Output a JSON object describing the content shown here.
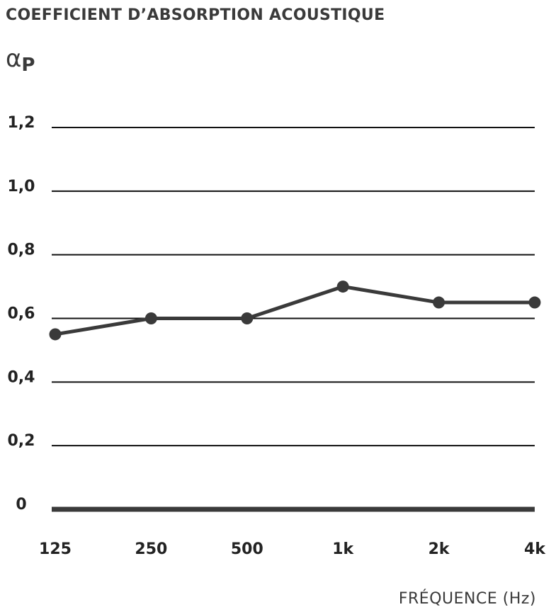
{
  "chart_data": {
    "type": "line",
    "title": "COEFFICIENT D’ABSORPTION ACOUSTIQUE",
    "y_label": "α",
    "y_label_subscript": "P",
    "x_label": "FRÉQUENCE (Hz)",
    "categories": [
      "125",
      "250",
      "500",
      "1k",
      "2k",
      "4k"
    ],
    "series": [
      {
        "name": null,
        "color": "#3a3a3a",
        "values": [
          0.55,
          0.6,
          0.6,
          0.7,
          0.65,
          0.65
        ]
      }
    ],
    "ylim": [
      0,
      1.2
    ],
    "yticks": [
      0,
      {
        "value": 0.2,
        "label": "0,2"
      },
      {
        "value": 0.4,
        "label": "0,4"
      },
      {
        "value": 0.6,
        "label": "0,6"
      },
      {
        "value": 0.8,
        "label": "0,8"
      },
      {
        "value": 1.0,
        "label": "1,0"
      },
      {
        "value": 1.2,
        "label": "1,2"
      }
    ],
    "grid": true
  }
}
